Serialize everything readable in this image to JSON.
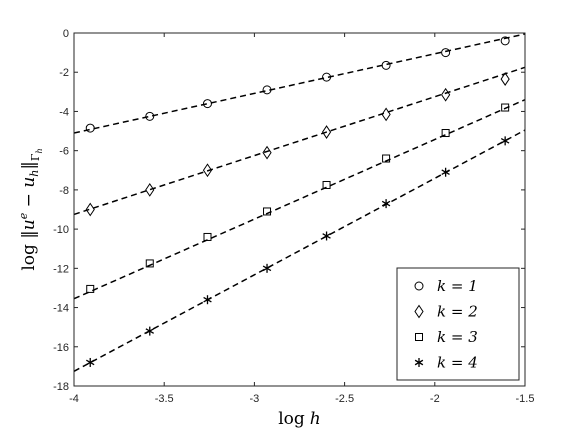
{
  "chart_data": {
    "type": "scatter",
    "title": "",
    "xlabel": "log h",
    "ylabel": "log ‖u^e − u_h‖_{Γ_h}",
    "xlim": [
      -4,
      -1.5
    ],
    "ylim": [
      -18,
      0
    ],
    "xticks": [
      -4,
      -3.5,
      -3,
      -2.5,
      -2,
      -1.5
    ],
    "yticks": [
      0,
      -2,
      -4,
      -6,
      -8,
      -10,
      -12,
      -14,
      -16,
      -18
    ],
    "xtick_labels": [
      "-4",
      "-3.5",
      "-3",
      "-2.5",
      "-2",
      "-1.5"
    ],
    "ytick_labels": [
      "0",
      "-2",
      "-4",
      "-6",
      "-8",
      "-10",
      "-12",
      "-14",
      "-16",
      "-18"
    ],
    "grid": false,
    "legend_position": "bottom-right",
    "x": [
      -3.91,
      -3.58,
      -3.26,
      -2.93,
      -2.6,
      -2.27,
      -1.94,
      -1.61
    ],
    "series": [
      {
        "name": "k = 1",
        "marker": "circle",
        "values": [
          -4.85,
          -4.25,
          -3.6,
          -2.9,
          -2.25,
          -1.65,
          -1.0,
          -0.4
        ],
        "fit": [
          [
            -4,
            -5.1
          ],
          [
            -1.5,
            -0.05
          ]
        ]
      },
      {
        "name": "k = 2",
        "marker": "diamond",
        "values": [
          -9.0,
          -8.0,
          -7.0,
          -6.1,
          -5.05,
          -4.15,
          -3.15,
          -2.35
        ],
        "fit": [
          [
            -4,
            -9.25
          ],
          [
            -1.5,
            -1.75
          ]
        ]
      },
      {
        "name": "k = 3",
        "marker": "square",
        "values": [
          -13.05,
          -11.75,
          -10.4,
          -9.1,
          -7.75,
          -6.4,
          -5.1,
          -3.8
        ],
        "fit": [
          [
            -4,
            -13.55
          ],
          [
            -1.5,
            -3.4
          ]
        ]
      },
      {
        "name": "k = 4",
        "marker": "star",
        "values": [
          -16.8,
          -15.2,
          -13.6,
          -12.0,
          -10.35,
          -8.7,
          -7.1,
          -5.5
        ],
        "fit": [
          [
            -4,
            -17.25
          ],
          [
            -1.5,
            -4.95
          ]
        ]
      }
    ]
  }
}
